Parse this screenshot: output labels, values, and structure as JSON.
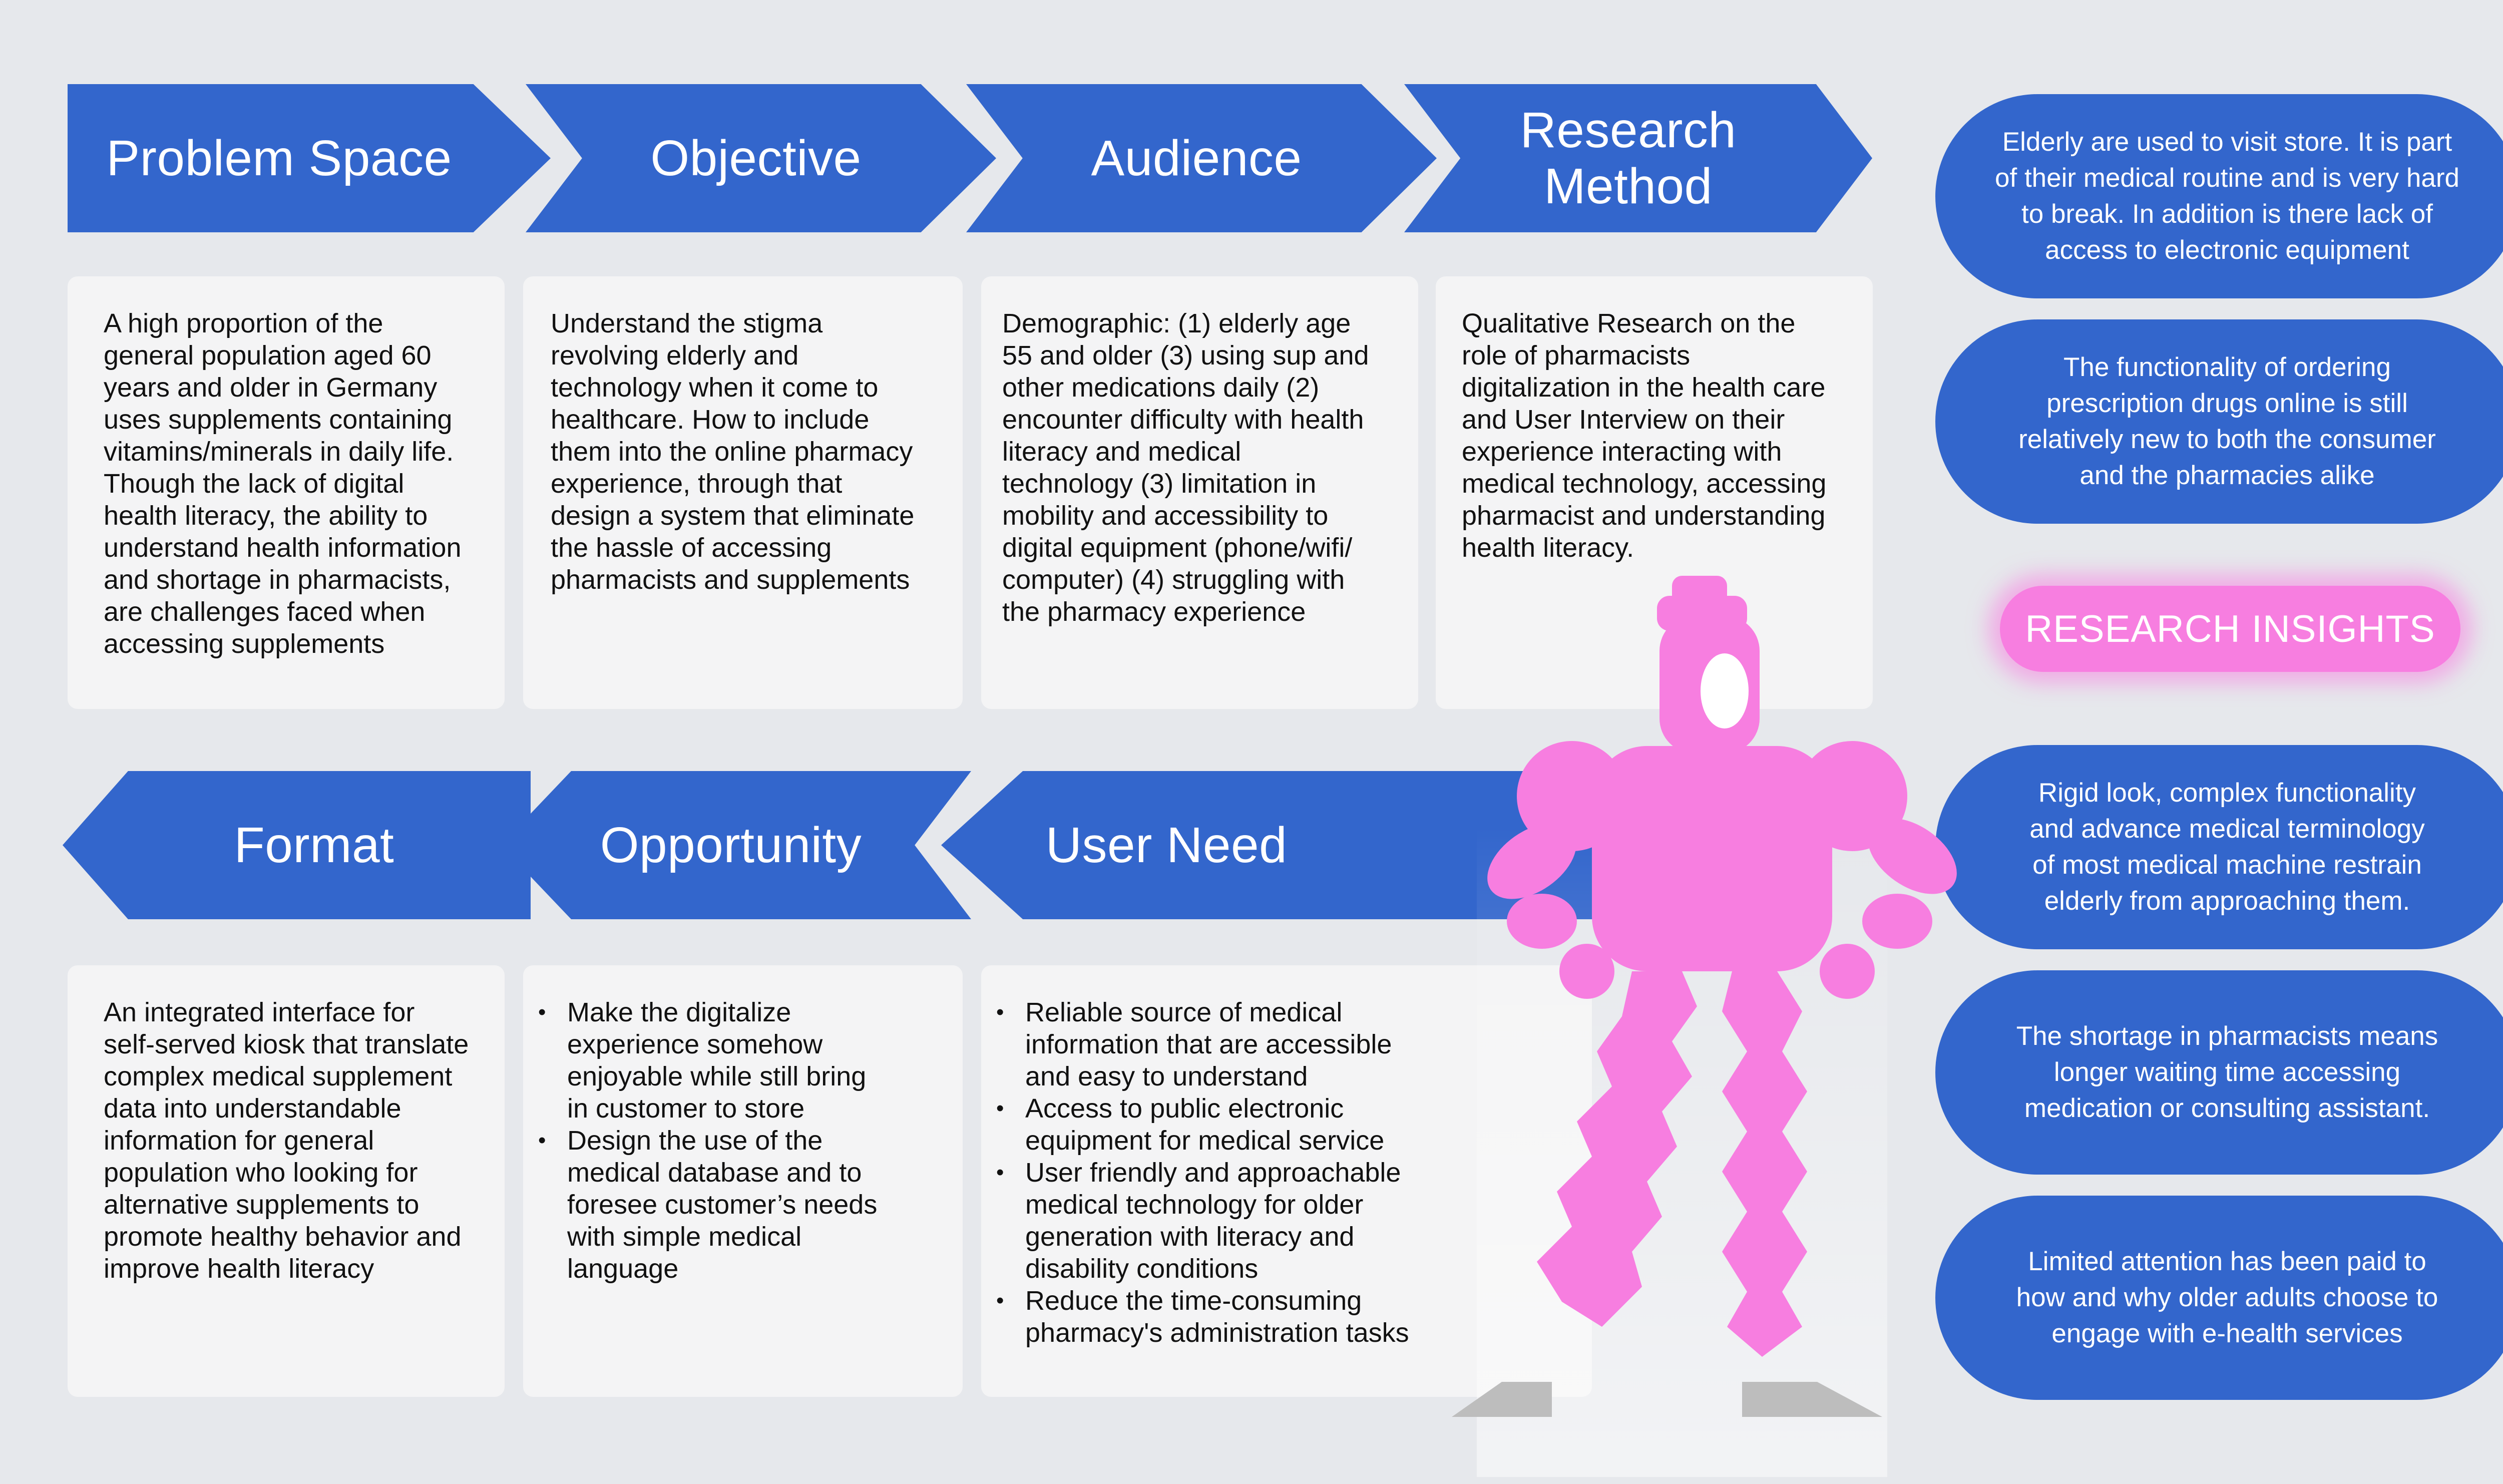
{
  "colors": {
    "background": "#e6e8ec",
    "header_blue": "#3366cc",
    "card_bg": "#f4f4f5",
    "pink": "#f77ee0",
    "shadow_gray": "#bdbdbd"
  },
  "top_row": {
    "headers": [
      {
        "label": "Problem Space"
      },
      {
        "label": "Objective"
      },
      {
        "label": "Audience"
      },
      {
        "label_line1": "Research",
        "label_line2": "Method"
      }
    ],
    "cards": [
      {
        "text": "A high proportion of the\ngeneral population aged 60\nyears and older in Germany\nuses supplements containing\nvitamins/minerals in daily life.\nThough the lack of digital\nhealth literacy, the ability to\nunderstand health information\nand shortage in pharmacists,\nare challenges faced when\naccessing supplements"
      },
      {
        "text": "Understand the stigma\nrevolving elderly and\ntechnology when it come to\nhealthcare. How to include\nthem into the online pharmacy\nexperience, through that\ndesign a system that eliminate\nthe hassle of accessing\npharmacists and supplements"
      },
      {
        "text": "Demographic: (1) elderly age\n55 and older (3) using sup and\nother medications daily (2)\nencounter difficulty with health\nliteracy and medical\ntechnology (3) limitation in\nmobility and accessibility to\ndigital equipment (phone/wifi/\ncomputer) (4) struggling with\nthe pharmacy experience"
      },
      {
        "text": "Qualitative Research on the\nrole of pharmacists\ndigitalization in the health care\nand User Interview on their\nexperience interacting with\nmedical technology, accessing\npharmacist and understanding\nhealth literacy."
      }
    ]
  },
  "bottom_row": {
    "headers": [
      {
        "label": "Format"
      },
      {
        "label": "Opportunity"
      },
      {
        "label": "User Need"
      }
    ],
    "cards": {
      "format": {
        "text": "An integrated interface for\nself-served kiosk that translate\ncomplex medical supplement\ndata into understandable\ninformation for general\npopulation who looking for\nalternative supplements to\npromote healthy behavior and\nimprove health literacy"
      },
      "opportunity": {
        "items": [
          "Make the digitalize\nexperience somehow\nenjoyable while still bring\nin customer to store",
          "Design the use of the\nmedical database and to\nforesee customer’s needs\nwith simple medical\nlanguage"
        ]
      },
      "user_need": {
        "items": [
          "Reliable source of medical\ninformation that are accessible\nand easy to understand",
          "Access to public electronic\nequipment for medical service",
          "User friendly and approachable\nmedical technology for older\ngeneration with literacy and\ndisability conditions",
          "Reduce the time-consuming\npharmacy's administration tasks"
        ]
      }
    }
  },
  "research_insights": {
    "label": "RESEARCH INSIGHTS",
    "items": [
      "Elderly are used to visit store. It is part\nof their medical routine and is very hard\nto break. In addition is there lack of\naccess to electronic equipment",
      "The functionality of ordering\nprescription drugs online is still\nrelatively new to both the consumer\nand the pharmacies alike",
      "Rigid look, complex functionality\nand advance medical terminology\nof most medical machine restrain\nelderly from approaching them.",
      "The shortage in pharmacists means\nlonger waiting time accessing\nmedication or consulting assistant.",
      "Limited attention has been paid to\nhow and why older adults choose to\nengage with e-health services"
    ]
  },
  "figure": {
    "icon": "robot-figure-icon"
  }
}
